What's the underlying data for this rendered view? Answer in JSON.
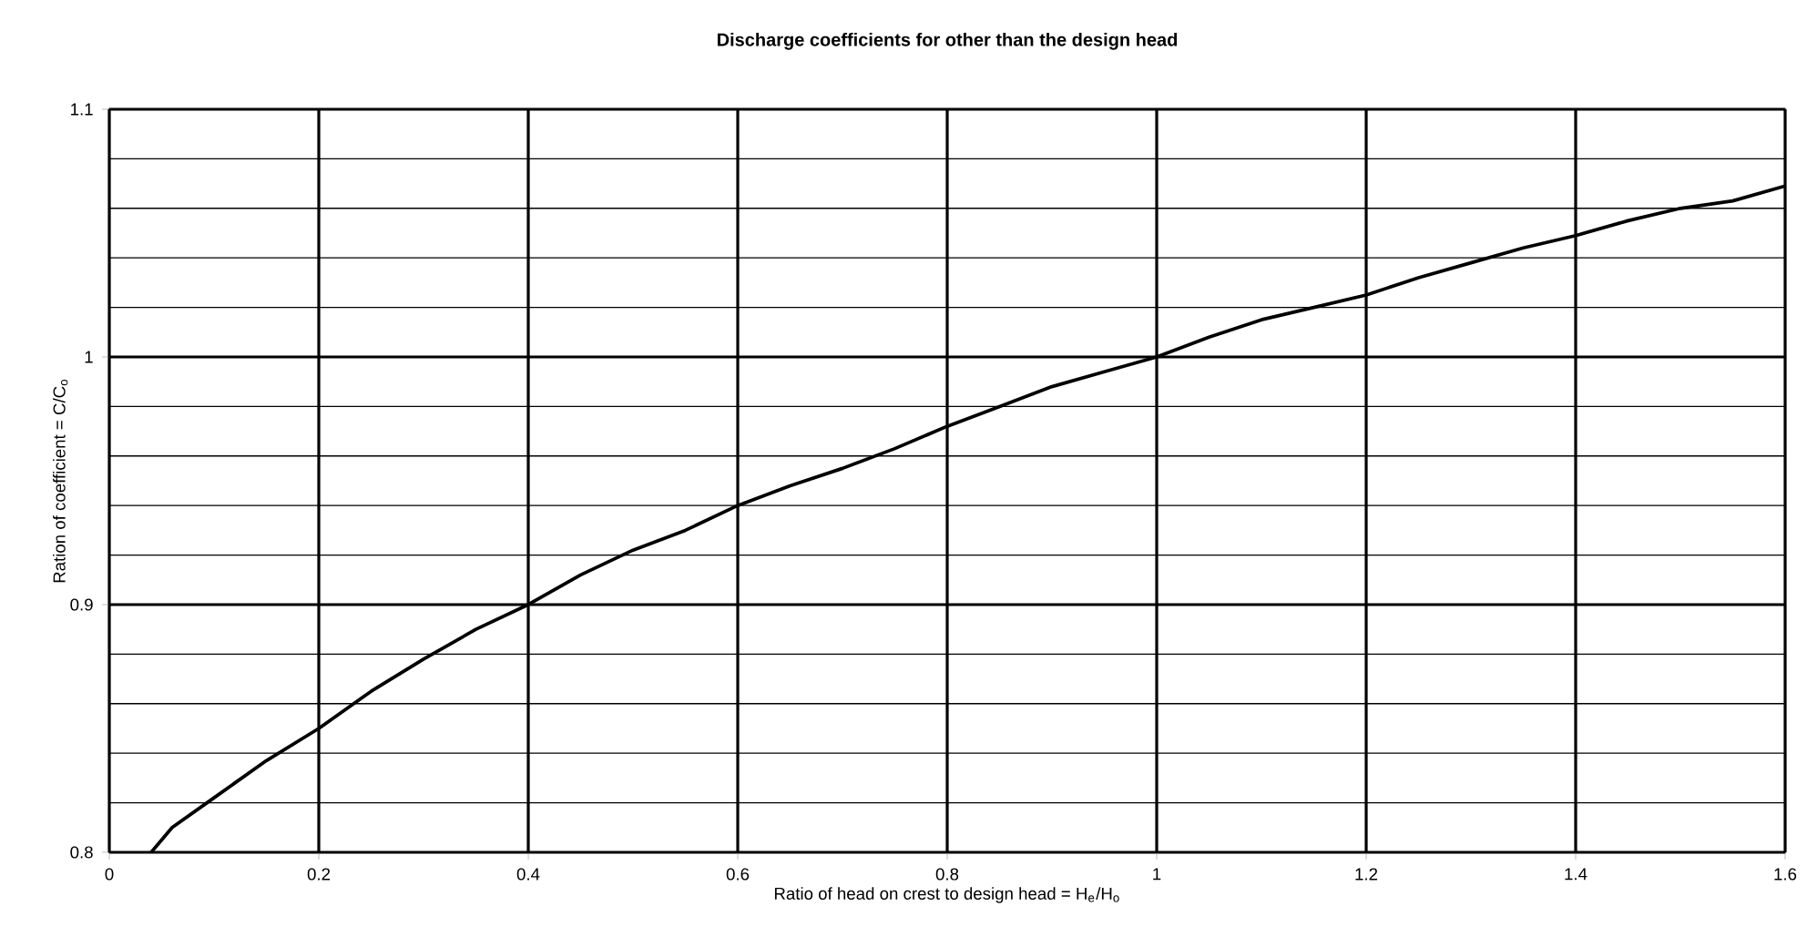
{
  "chart_data": {
    "type": "line",
    "title": "Discharge coefficients for other than the design head",
    "xlabel": "Ratio of head on crest to design head = H$_{e}$/H$_{o}$",
    "ylabel": "Ration of coefficient = C/C$_{o}$",
    "x": [
      0.04,
      0.06,
      0.1,
      0.15,
      0.2,
      0.25,
      0.3,
      0.35,
      0.4,
      0.45,
      0.5,
      0.55,
      0.6,
      0.65,
      0.7,
      0.75,
      0.8,
      0.85,
      0.9,
      0.95,
      1.0,
      1.05,
      1.1,
      1.15,
      1.2,
      1.25,
      1.3,
      1.35,
      1.4,
      1.45,
      1.5,
      1.55,
      1.6
    ],
    "series": [
      {
        "color": "#000000",
        "values": [
          0.8,
          0.81,
          0.822,
          0.837,
          0.85,
          0.865,
          0.878,
          0.89,
          0.9,
          0.912,
          0.922,
          0.93,
          0.94,
          0.948,
          0.955,
          0.963,
          0.972,
          0.98,
          0.988,
          0.994,
          1.0,
          1.008,
          1.015,
          1.02,
          1.025,
          1.032,
          1.038,
          1.044,
          1.049,
          1.055,
          1.06,
          1.063,
          1.069
        ]
      }
    ],
    "xlim": [
      0,
      1.6
    ],
    "ylim": [
      0.8,
      1.1
    ],
    "xticks": [
      0,
      0.2,
      0.4,
      0.6,
      0.8,
      1,
      1.2,
      1.4,
      1.6
    ],
    "yticks": [
      0.8,
      {
        "value": 0.82,
        "label": null
      },
      {
        "value": 0.84,
        "label": null
      },
      {
        "value": 0.86,
        "label": null
      },
      {
        "value": 0.88,
        "label": null
      },
      0.9,
      {
        "value": 0.92,
        "label": null
      },
      {
        "value": 0.94,
        "label": null
      },
      {
        "value": 0.96,
        "label": null
      },
      {
        "value": 0.98,
        "label": null
      },
      1,
      {
        "value": 1.02,
        "label": null
      },
      {
        "value": 1.04,
        "label": null
      },
      {
        "value": 1.06,
        "label": null
      },
      {
        "value": 1.08,
        "label": null
      },
      1.1
    ],
    "grid": true,
    "marker": "none",
    "line_style": "solid"
  }
}
